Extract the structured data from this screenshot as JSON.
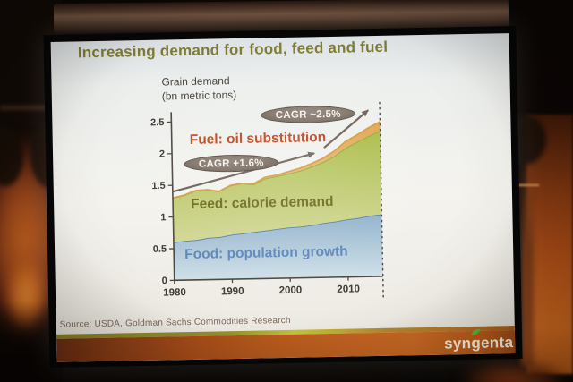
{
  "slide": {
    "title": "Increasing demand for food, feed and fuel",
    "source": "Source: USDA, Goldman Sachs Commodities Research"
  },
  "footer": {
    "logo": {
      "pre": "syn",
      "mid": "g",
      "post": "enta"
    }
  },
  "colors": {
    "title": "#7d7b32",
    "axis": "#4a453e",
    "badge_bg": "#8b7e74",
    "badge_text": "#f5f2ee",
    "arrow": "#6d6056",
    "divider": "#4c463e",
    "logo_text": "#f4edda",
    "logo_leaf": "#5fae36"
  },
  "chart_data": {
    "type": "area",
    "stacked": true,
    "title": "Grain demand",
    "subtitle": "(bn metric tons)",
    "x": [
      1980,
      1982,
      1984,
      1986,
      1988,
      1990,
      1992,
      1994,
      1996,
      1998,
      2000,
      2002,
      2004,
      2006,
      2008,
      2010,
      2012,
      2014,
      2016
    ],
    "series": [
      {
        "name": "Food: population growth",
        "values": [
          0.6,
          0.62,
          0.63,
          0.66,
          0.67,
          0.7,
          0.72,
          0.74,
          0.76,
          0.78,
          0.8,
          0.81,
          0.83,
          0.86,
          0.88,
          0.91,
          0.93,
          0.96,
          0.98
        ],
        "edge": "#4f7fae",
        "fill_top": "#8fb0ca",
        "fill_bottom": "#cfe0e8"
      },
      {
        "name": "Feed: calorie demand",
        "values": [
          0.7,
          0.72,
          0.78,
          0.76,
          0.72,
          0.78,
          0.79,
          0.75,
          0.82,
          0.83,
          0.85,
          0.88,
          0.92,
          0.96,
          1.03,
          1.13,
          1.2,
          1.26,
          1.32
        ],
        "edge": "#8aa829",
        "fill_top": "#a9bc45",
        "fill_bottom": "#d2d795"
      },
      {
        "name": "Fuel: oil substitution",
        "values": [
          0.0,
          0.0,
          0.0,
          0.0,
          0.0,
          0.0,
          0.0,
          0.01,
          0.02,
          0.02,
          0.03,
          0.04,
          0.05,
          0.06,
          0.08,
          0.1,
          0.11,
          0.13,
          0.14
        ],
        "edge": "#d79a40",
        "fill_top": "#dda64e",
        "fill_bottom": "#e6c27e"
      }
    ],
    "ylim": [
      0,
      2.5
    ],
    "y_ticks": [
      0,
      0.5,
      1,
      1.5,
      2,
      2.5
    ],
    "x_ticks": [
      1980,
      1990,
      2000,
      2010
    ],
    "grid": false,
    "legend_position": "labels inside areas",
    "forecast_divider_year": 2016,
    "annotations": {
      "fuel_label": {
        "text": "Fuel: oil substitution",
        "color": "#c2441c"
      },
      "feed_label": {
        "text": "Feed: calorie demand",
        "color": "#6b691c"
      },
      "food_label": {
        "text": "Food: population growth",
        "color": "#5b85b8"
      },
      "cagr_1980_2005": {
        "text": "CAGR +1.6%"
      },
      "cagr_2005_2015": {
        "text": "CAGR ~2.5%"
      }
    }
  }
}
